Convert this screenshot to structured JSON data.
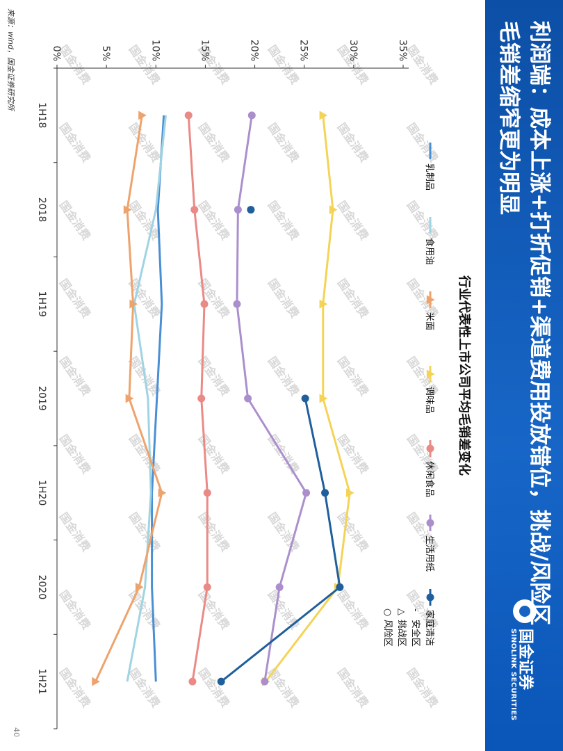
{
  "header": {
    "title_line1": "利润端：成本上涨+打折促销+渠道费用投放错位，挑战/风险区",
    "title_line2": "毛销差缩窄更为明显",
    "logo_cn": "国金证券",
    "logo_en": "SINOLINK SECURITIES"
  },
  "colors": {
    "header_bg": "#1766c7",
    "乳制品": "#4a8fd3",
    "食用油": "#9fd4e2",
    "米面": "#eea36d",
    "调味品": "#f5d357",
    "休闲食品": "#ea8a86",
    "生活用纸": "#ab8fcd",
    "家庭清洁": "#1f5f9c"
  },
  "watermark": "国金消费",
  "chart_data": {
    "type": "line",
    "title": "行业代表性上市公司平均毛销差变化",
    "categories": [
      "1H18",
      "2018",
      "1H19",
      "2019",
      "1H20",
      "2020",
      "1H21"
    ],
    "ylim": [
      0,
      35
    ],
    "yticks": [
      "0%",
      "5%",
      "10%",
      "15%",
      "20%",
      "25%",
      "30%",
      "35%"
    ],
    "ytick_values": [
      0,
      5,
      10,
      15,
      20,
      25,
      30,
      35
    ],
    "grid": false,
    "legend_position": "top",
    "zone_legend": [
      "安全区",
      "挑战区",
      "风险区"
    ],
    "series": [
      {
        "name": "乳制品",
        "zone": "安全区",
        "marker": "none",
        "values": [
          10.8,
          10.2,
          10.6,
          10.1,
          9.6,
          9.6,
          10.0
        ]
      },
      {
        "name": "食用油",
        "zone": "安全区",
        "marker": "none",
        "values": [
          11.0,
          10.0,
          7.8,
          9.2,
          9.5,
          8.9,
          7.1
        ]
      },
      {
        "name": "米面",
        "zone": "挑战区",
        "marker": "triangle",
        "values": [
          8.6,
          7.1,
          7.7,
          7.3,
          10.6,
          8.3,
          3.9
        ]
      },
      {
        "name": "调味品",
        "zone": "挑战区",
        "marker": "triangle",
        "values": [
          26.9,
          27.9,
          26.9,
          26.9,
          29.6,
          28.4,
          21.1
        ]
      },
      {
        "name": "休闲食品",
        "zone": "风险区",
        "marker": "circle",
        "values": [
          13.3,
          13.9,
          14.9,
          14.6,
          15.2,
          15.2,
          13.7
        ]
      },
      {
        "name": "生活用纸",
        "zone": "风险区",
        "marker": "circle",
        "values": [
          19.7,
          18.3,
          18.2,
          19.3,
          25.2,
          22.5,
          21.0
        ]
      },
      {
        "name": "家庭清洁",
        "zone": "风险区",
        "marker": "circle",
        "values": [
          null,
          19.6,
          null,
          25.1,
          27.1,
          28.6,
          16.6
        ]
      }
    ]
  },
  "footer": {
    "source": "来源：wind，国金证券研究所",
    "page_number": "40"
  }
}
